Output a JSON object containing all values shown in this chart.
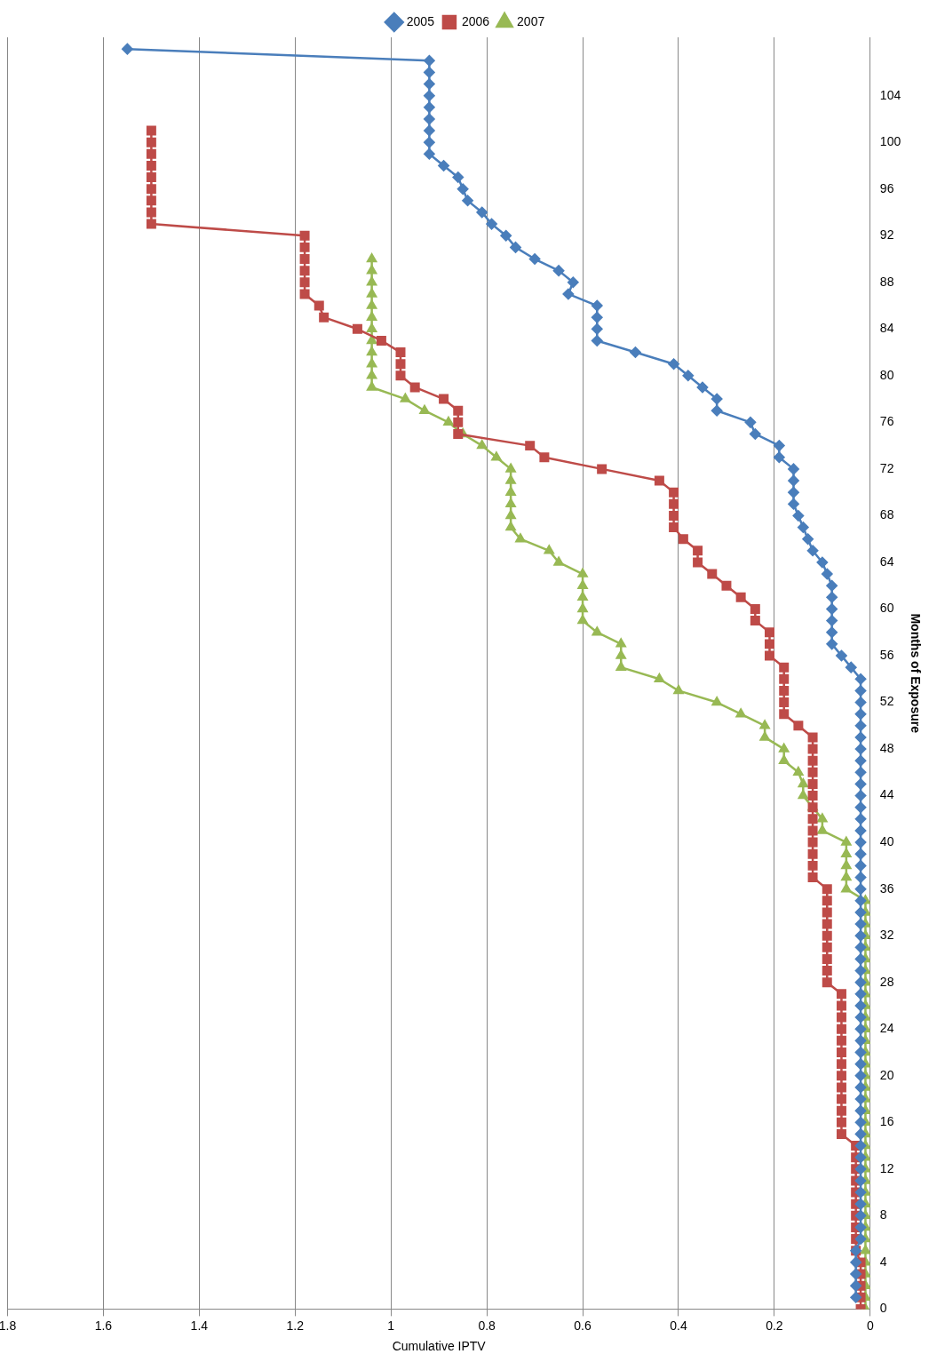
{
  "chart_data": {
    "type": "line",
    "orientation": "horizontal",
    "xlabel": "Cumulative IPTV",
    "ylabel": "Months of Exposure",
    "x": [
      0,
      1,
      2,
      3,
      4,
      5,
      6,
      7,
      8,
      9,
      10,
      11,
      12,
      13,
      14,
      15,
      16,
      17,
      18,
      19,
      20,
      21,
      22,
      23,
      24,
      25,
      26,
      27,
      28,
      29,
      30,
      31,
      32,
      33,
      34,
      35,
      36,
      37,
      38,
      39,
      40,
      41,
      42,
      43,
      44,
      45,
      46,
      47,
      48,
      49,
      50,
      51,
      52,
      53,
      54,
      55,
      56,
      57,
      58,
      59,
      60,
      61,
      62,
      63,
      64,
      65,
      66,
      67,
      68,
      69,
      70,
      71,
      72,
      73,
      74,
      75,
      76,
      77,
      78,
      79,
      80,
      81,
      82,
      83,
      84,
      85,
      86,
      87,
      88,
      89,
      90,
      91,
      92,
      93,
      94,
      95,
      96,
      97,
      98,
      99,
      100,
      101,
      102,
      103,
      104,
      105,
      106,
      107,
      108
    ],
    "series": [
      {
        "name": "2005",
        "color": "#4a7ebb",
        "marker": "diamond",
        "values": [
          null,
          0.03,
          0.03,
          0.03,
          0.03,
          0.03,
          0.02,
          0.02,
          0.02,
          0.02,
          0.02,
          0.02,
          0.02,
          0.02,
          0.02,
          0.02,
          0.02,
          0.02,
          0.02,
          0.02,
          0.02,
          0.02,
          0.02,
          0.02,
          0.02,
          0.02,
          0.02,
          0.02,
          0.02,
          0.02,
          0.02,
          0.02,
          0.02,
          0.02,
          0.02,
          0.02,
          0.02,
          0.02,
          0.02,
          0.02,
          0.02,
          0.02,
          0.02,
          0.02,
          0.02,
          0.02,
          0.02,
          0.02,
          0.02,
          0.02,
          0.02,
          0.02,
          0.02,
          0.02,
          0.02,
          0.04,
          0.06,
          0.08,
          0.08,
          0.08,
          0.08,
          0.08,
          0.08,
          0.09,
          0.1,
          0.12,
          0.13,
          0.14,
          0.15,
          0.16,
          0.16,
          0.16,
          0.16,
          0.19,
          0.19,
          0.24,
          0.25,
          0.32,
          0.32,
          0.35,
          0.38,
          0.41,
          0.49,
          0.57,
          0.57,
          0.57,
          0.57,
          0.63,
          0.62,
          0.65,
          0.7,
          0.74,
          0.76,
          0.79,
          0.81,
          0.84,
          0.85,
          0.86,
          0.89,
          0.92,
          0.92,
          0.92,
          0.92,
          0.92,
          0.92,
          0.92,
          0.92,
          0.92,
          1.55
        ]
      },
      {
        "name": "2006",
        "color": "#be4b48",
        "marker": "square",
        "values": [
          0.02,
          0.02,
          0.02,
          0.02,
          0.02,
          0.03,
          0.03,
          0.03,
          0.03,
          0.03,
          0.03,
          0.03,
          0.03,
          0.03,
          0.03,
          0.06,
          0.06,
          0.06,
          0.06,
          0.06,
          0.06,
          0.06,
          0.06,
          0.06,
          0.06,
          0.06,
          0.06,
          0.06,
          0.09,
          0.09,
          0.09,
          0.09,
          0.09,
          0.09,
          0.09,
          0.09,
          0.09,
          0.12,
          0.12,
          0.12,
          0.12,
          0.12,
          0.12,
          0.12,
          0.12,
          0.12,
          0.12,
          0.12,
          0.12,
          0.12,
          0.15,
          0.18,
          0.18,
          0.18,
          0.18,
          0.18,
          0.21,
          0.21,
          0.21,
          0.24,
          0.24,
          0.27,
          0.3,
          0.33,
          0.36,
          0.36,
          0.39,
          0.41,
          0.41,
          0.41,
          0.41,
          0.44,
          0.56,
          0.68,
          0.71,
          0.86,
          0.86,
          0.86,
          0.89,
          0.95,
          0.98,
          0.98,
          0.98,
          1.02,
          1.07,
          1.14,
          1.15,
          1.18,
          1.18,
          1.18,
          1.18,
          1.18,
          1.18,
          1.5,
          1.5,
          1.5,
          1.5,
          1.5,
          1.5,
          1.5,
          1.5,
          1.5,
          null,
          null,
          null,
          null,
          null,
          null,
          null
        ]
      },
      {
        "name": "2007",
        "color": "#98b954",
        "marker": "triangle",
        "values": [
          0.01,
          0.01,
          0.01,
          0.01,
          0.01,
          0.01,
          0.01,
          0.01,
          0.01,
          0.01,
          0.01,
          0.01,
          0.01,
          0.01,
          0.01,
          0.01,
          0.01,
          0.01,
          0.01,
          0.01,
          0.01,
          0.01,
          0.01,
          0.01,
          0.01,
          0.01,
          0.01,
          0.01,
          0.01,
          0.01,
          0.01,
          0.01,
          0.01,
          0.01,
          0.01,
          0.01,
          0.05,
          0.05,
          0.05,
          0.05,
          0.05,
          0.1,
          0.1,
          0.12,
          0.14,
          0.14,
          0.15,
          0.18,
          0.18,
          0.22,
          0.22,
          0.27,
          0.32,
          0.4,
          0.44,
          0.52,
          0.52,
          0.52,
          0.57,
          0.6,
          0.6,
          0.6,
          0.6,
          0.6,
          0.65,
          0.67,
          0.73,
          0.75,
          0.75,
          0.75,
          0.75,
          0.75,
          0.75,
          0.78,
          0.81,
          0.85,
          0.88,
          0.93,
          0.97,
          1.04,
          1.04,
          1.04,
          1.04,
          1.04,
          1.04,
          1.04,
          1.04,
          1.04,
          1.04,
          1.04,
          1.04,
          null,
          null,
          null,
          null,
          null,
          null,
          null,
          null,
          null,
          null,
          null,
          null,
          null,
          null,
          null,
          null,
          null,
          null
        ]
      }
    ],
    "ylim": [
      0,
      109
    ],
    "yticks": [
      0,
      4,
      8,
      12,
      16,
      20,
      24,
      28,
      32,
      36,
      40,
      44,
      48,
      52,
      56,
      60,
      64,
      68,
      72,
      76,
      80,
      84,
      88,
      92,
      96,
      100,
      104
    ],
    "xlim": [
      1.8,
      0
    ],
    "xticks": [
      0,
      0.2,
      0.4,
      0.6,
      0.8,
      1,
      1.2,
      1.4,
      1.6,
      1.8
    ],
    "grid": "x",
    "legend": "top"
  }
}
